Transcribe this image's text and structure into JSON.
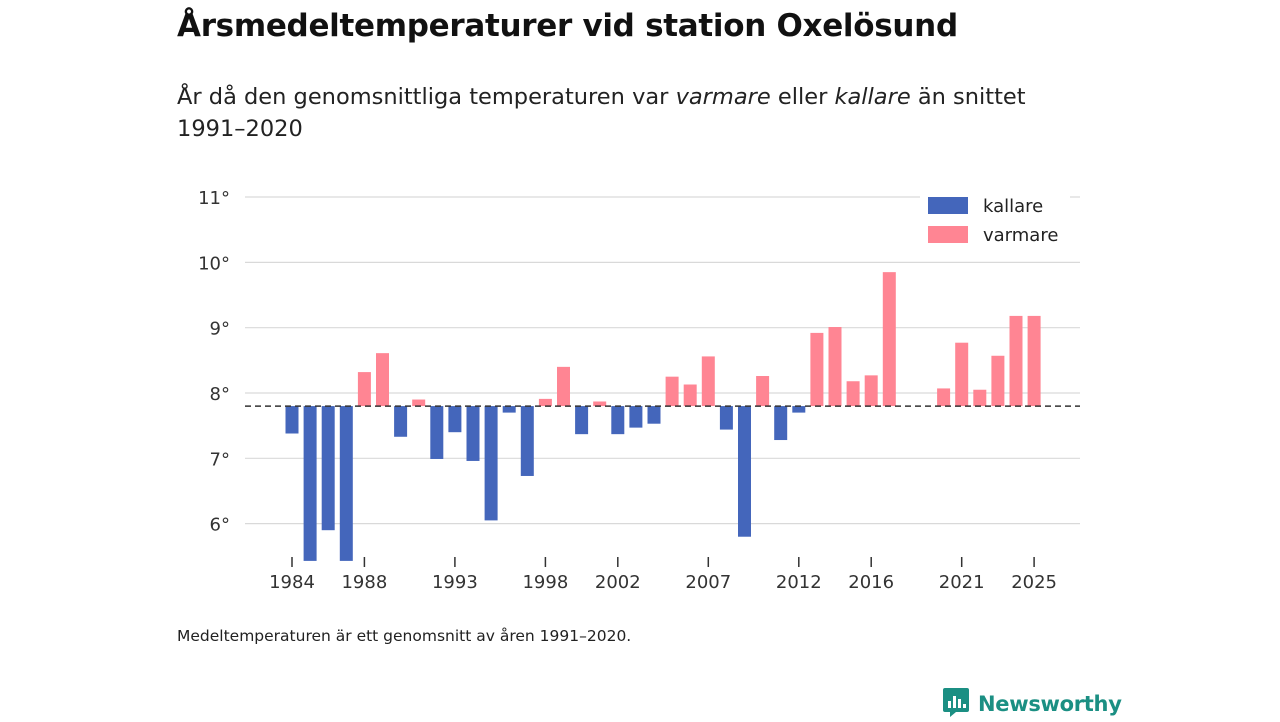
{
  "header": {
    "title": "Årsmedeltemperaturer vid station Oxelösund",
    "subtitle_pre": "År då den genomsnittliga temperaturen var ",
    "subtitle_warm": "varmare",
    "subtitle_mid": " eller ",
    "subtitle_cold": "kallare",
    "subtitle_post": " än snittet 1991–2020"
  },
  "footnote": "Medeltemperaturen är ett genomsnitt av åren 1991–2020.",
  "brand": {
    "name": "Newsworthy",
    "color": "#1b8f83"
  },
  "colors": {
    "cold": "#4466bb",
    "warm": "#ff8593",
    "grid": "#d9d9d9",
    "baseline": "#333333"
  },
  "chart_data": {
    "type": "bar",
    "title": "Årsmedeltemperaturer vid station Oxelösund",
    "baseline": 7.8,
    "ylim": [
      5.4,
      11.1
    ],
    "yticks": [
      6,
      7,
      8,
      9,
      10,
      11
    ],
    "ytick_suffix": "°",
    "xticks": [
      1984,
      1988,
      1993,
      1998,
      2002,
      2007,
      2012,
      2016,
      2021,
      2025
    ],
    "xlim": [
      1983,
      2027
    ],
    "legend": [
      {
        "key": "cold",
        "label": "kallare"
      },
      {
        "key": "warm",
        "label": "varmare"
      }
    ],
    "legend_position": "top-right",
    "years": [
      1984,
      1985,
      1986,
      1987,
      1988,
      1989,
      1990,
      1991,
      1992,
      1993,
      1994,
      1995,
      1996,
      1997,
      1998,
      1999,
      2000,
      2001,
      2002,
      2003,
      2004,
      2005,
      2006,
      2007,
      2008,
      2009,
      2010,
      2011,
      2012,
      2013,
      2014,
      2015,
      2016,
      2017,
      2020,
      2021,
      2022,
      2023,
      2024,
      2025
    ],
    "values": [
      7.38,
      5.43,
      5.9,
      5.43,
      8.32,
      8.61,
      7.33,
      7.9,
      6.99,
      7.4,
      6.96,
      6.05,
      7.7,
      6.73,
      7.91,
      8.4,
      7.37,
      7.87,
      7.37,
      7.47,
      7.53,
      8.25,
      8.13,
      8.56,
      7.44,
      5.8,
      8.26,
      7.28,
      7.7,
      8.92,
      9.01,
      8.18,
      8.27,
      9.85,
      8.07,
      8.77,
      8.05,
      8.57,
      9.18,
      9.18
    ]
  }
}
